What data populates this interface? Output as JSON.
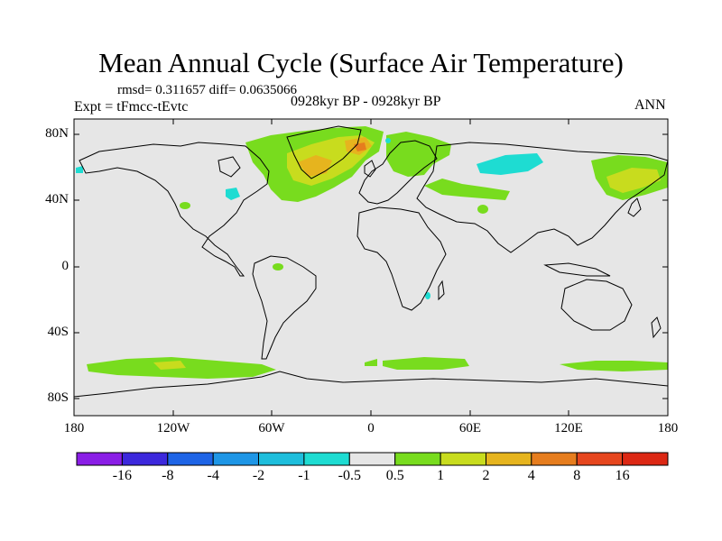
{
  "title": "Mean Annual Cycle (Surface Air Temperature)",
  "stats": "rmsd= 0.311657 diff= 0.0635066",
  "experiment": "Expt = tFmcc-tEvtc",
  "period": "0928kyr BP - 0928kyr BP",
  "season": "ANN",
  "lat_labels": [
    "80N",
    "40N",
    "0",
    "40S",
    "80S"
  ],
  "lon_labels": [
    "180",
    "120W",
    "60W",
    "0",
    "60E",
    "120E",
    "180"
  ],
  "colorbar": {
    "labels": [
      "-16",
      "-8",
      "-4",
      "-2",
      "-1",
      "-0.5",
      "0.5",
      "1",
      "2",
      "4",
      "8",
      "16"
    ],
    "colors": [
      "#8a1ee6",
      "#3c28dc",
      "#1e64e6",
      "#1e96e6",
      "#1ebedc",
      "#1edcd2",
      "#e6e6e6",
      "#78dc1e",
      "#c8dc1e",
      "#e6b41e",
      "#e67d1e",
      "#e6461e",
      "#dc2814"
    ]
  },
  "map": {
    "background": "#e6e6e6",
    "anomaly_colors": {
      "cyan": "#1edcd2",
      "green": "#78dc1e",
      "yellow": "#c8dc1e",
      "gold": "#e6b41e",
      "orange": "#e67d1e"
    }
  }
}
